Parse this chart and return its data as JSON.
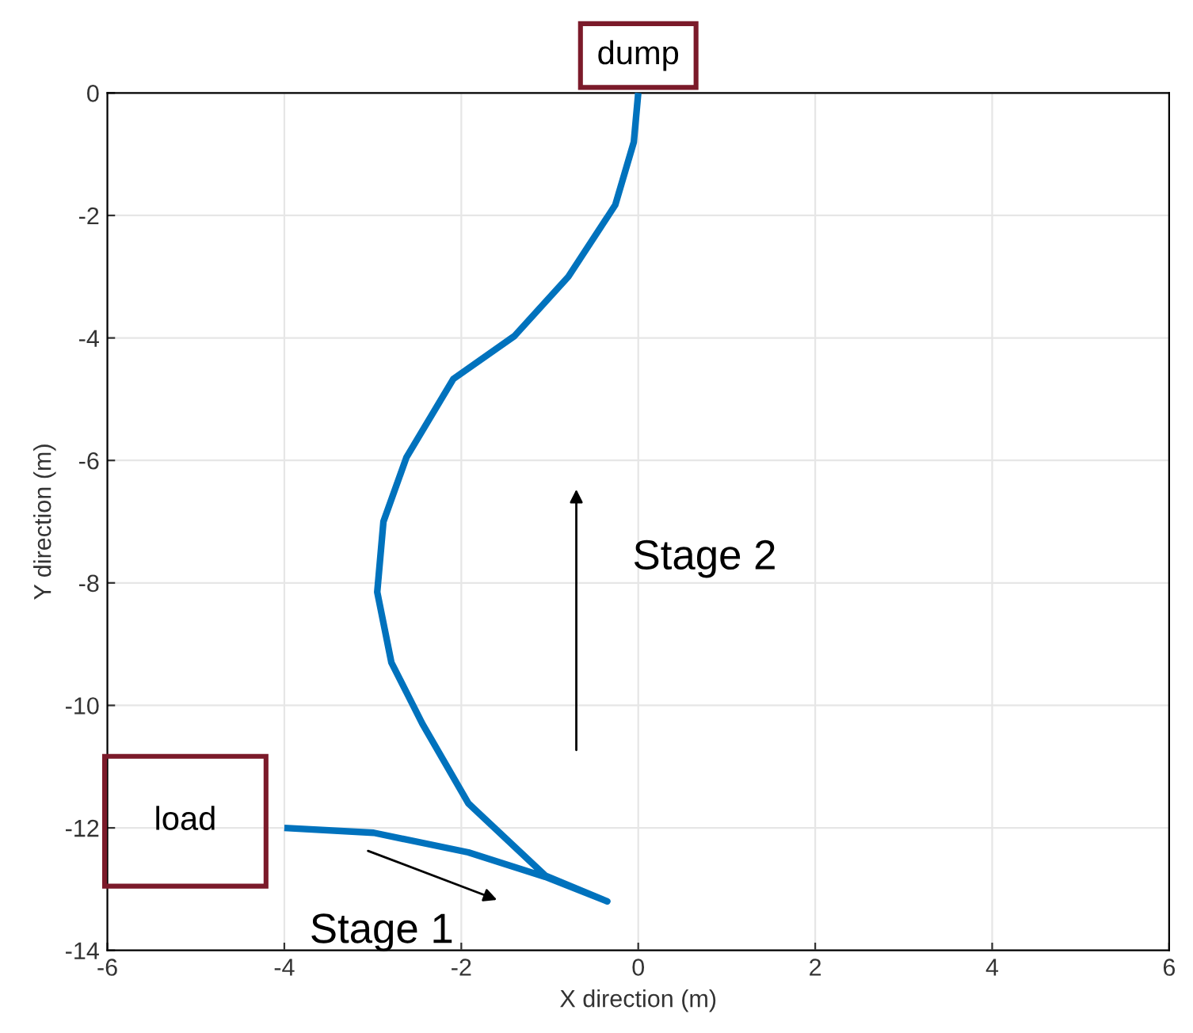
{
  "chart_data": {
    "type": "line",
    "xlabel": "X direction (m)",
    "ylabel": "Y direction (m)",
    "xlim": [
      -6,
      6
    ],
    "ylim": [
      -14,
      0
    ],
    "xticks": [
      -6,
      -4,
      -2,
      0,
      2,
      4,
      6
    ],
    "yticks": [
      -14,
      -12,
      -10,
      -8,
      -6,
      -4,
      -2,
      0
    ],
    "grid": true,
    "series": [
      {
        "color": "#0072bd",
        "x": [
          -4,
          -2.99,
          -1.92,
          -1.05,
          -0.35,
          -1.05,
          -1.92,
          -2.44,
          -2.79,
          -2.95,
          -2.88,
          -2.62,
          -2.09,
          -1.4,
          -0.79,
          -0.26,
          -0.05,
          0
        ],
        "values": [
          -12,
          -12.08,
          -12.4,
          -12.8,
          -13.2,
          -12.78,
          -11.6,
          -10.3,
          -9.3,
          -8.15,
          -7.0,
          -5.95,
          -4.67,
          -3.97,
          -3.0,
          -1.83,
          -0.8,
          0
        ]
      }
    ],
    "annotations": [
      {
        "text": "dump",
        "x": 0,
        "y": 0
      },
      {
        "text": "load",
        "x": -4,
        "y": -12
      },
      {
        "text": "Stage 1"
      },
      {
        "text": "Stage 2"
      }
    ]
  }
}
